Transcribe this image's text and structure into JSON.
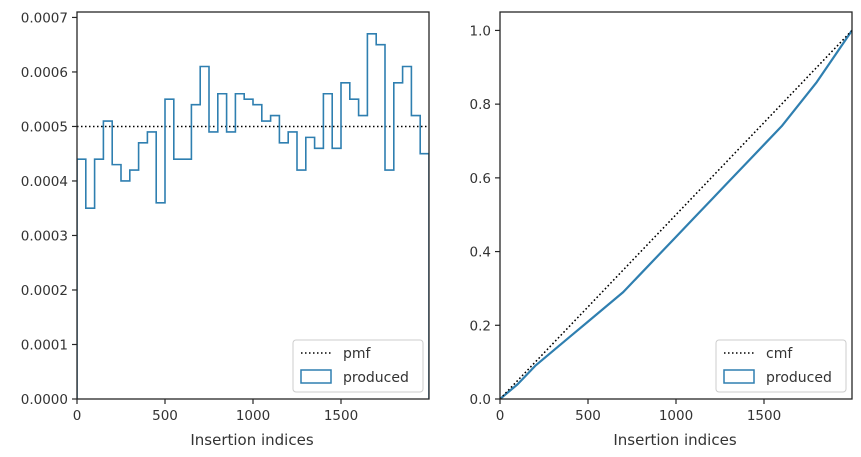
{
  "chart_data": [
    {
      "type": "step",
      "xlabel": "Insertion indices",
      "ylabel": "",
      "xlim": [
        0,
        2000
      ],
      "ylim": [
        0,
        0.00071
      ],
      "xticks": [
        0,
        500,
        1000,
        1500
      ],
      "xtick_labels": [
        "0",
        "500",
        "1000",
        "1500"
      ],
      "yticks": [
        0,
        0.0001,
        0.0002,
        0.0003,
        0.0004,
        0.0005,
        0.0006,
        0.0007
      ],
      "ytick_labels": [
        "0.0000",
        "0.0001",
        "0.0002",
        "0.0003",
        "0.0004",
        "0.0005",
        "0.0006",
        "0.0007"
      ],
      "grid": false,
      "legend_position": "lower right",
      "reference": {
        "name": "pmf",
        "style": "dotted",
        "color": "#000000",
        "value": 0.0005
      },
      "series": [
        {
          "name": "produced",
          "style": "step-histogram",
          "color": "#2f7fb0",
          "bin_width": 50,
          "x": [
            0,
            50,
            100,
            150,
            200,
            250,
            300,
            350,
            400,
            450,
            500,
            550,
            600,
            650,
            700,
            750,
            800,
            850,
            900,
            950,
            1000,
            1050,
            1100,
            1150,
            1200,
            1250,
            1300,
            1350,
            1400,
            1450,
            1500,
            1550,
            1600,
            1650,
            1700,
            1750,
            1800,
            1850,
            1900,
            1950
          ],
          "values": [
            0.00044,
            0.00035,
            0.00044,
            0.00051,
            0.00043,
            0.0004,
            0.00042,
            0.00047,
            0.00049,
            0.00036,
            0.00055,
            0.00044,
            0.00044,
            0.00054,
            0.00061,
            0.00049,
            0.00056,
            0.00049,
            0.00056,
            0.00055,
            0.00054,
            0.00051,
            0.00052,
            0.00047,
            0.00049,
            0.00042,
            0.00048,
            0.00046,
            0.00056,
            0.00046,
            0.00058,
            0.00055,
            0.00052,
            0.00067,
            0.00065,
            0.00042,
            0.00058,
            0.00061,
            0.00052,
            0.00045
          ]
        }
      ]
    },
    {
      "type": "line",
      "xlabel": "Insertion indices",
      "ylabel": "",
      "xlim": [
        0,
        2000
      ],
      "ylim": [
        0,
        1.05
      ],
      "xticks": [
        0,
        500,
        1000,
        1500
      ],
      "xtick_labels": [
        "0",
        "500",
        "1000",
        "1500"
      ],
      "yticks": [
        0,
        0.2,
        0.4,
        0.6,
        0.8,
        1.0
      ],
      "ytick_labels": [
        "0.0",
        "0.2",
        "0.4",
        "0.6",
        "0.8",
        "1.0"
      ],
      "grid": false,
      "legend_position": "lower right",
      "reference": {
        "name": "cmf",
        "style": "dotted",
        "color": "#000000",
        "x": [
          0,
          2000
        ],
        "y": [
          0,
          1.0
        ]
      },
      "series": [
        {
          "name": "produced",
          "style": "step-cumulative",
          "color": "#2f7fb0",
          "x": [
            0,
            100,
            200,
            300,
            400,
            500,
            600,
            700,
            800,
            900,
            1000,
            1100,
            1200,
            1300,
            1400,
            1500,
            1600,
            1700,
            1800,
            1900,
            2000
          ],
          "values": [
            0,
            0.04,
            0.09,
            0.13,
            0.17,
            0.21,
            0.25,
            0.29,
            0.34,
            0.39,
            0.44,
            0.49,
            0.54,
            0.59,
            0.64,
            0.69,
            0.74,
            0.8,
            0.86,
            0.93,
            1.0
          ]
        }
      ]
    }
  ]
}
